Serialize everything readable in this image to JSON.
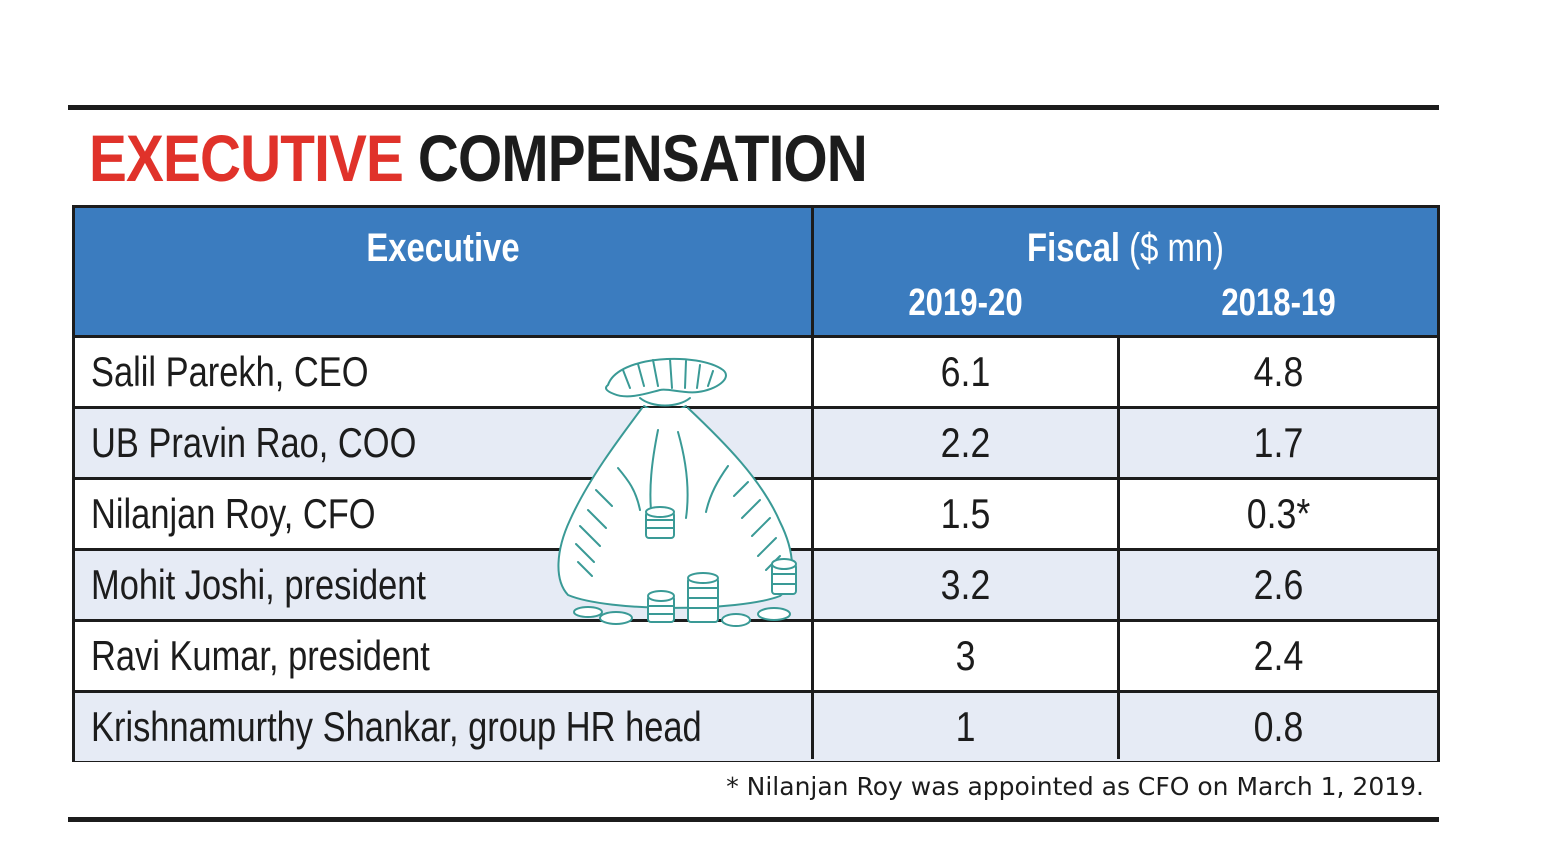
{
  "title": {
    "highlight": "EXECUTIVE",
    "rest": "COMPENSATION"
  },
  "header": {
    "executive": "Executive",
    "fiscal": "Fiscal",
    "unit": " ($ mn)",
    "years": [
      "2019-20",
      "2018-19"
    ]
  },
  "rows": [
    {
      "name": "Salil Parekh, CEO",
      "y2019_20": "6.1",
      "y2018_19": "4.8"
    },
    {
      "name": "UB Pravin Rao, COO",
      "y2019_20": "2.2",
      "y2018_19": "1.7"
    },
    {
      "name": "Nilanjan Roy, CFO",
      "y2019_20": "1.5",
      "y2018_19": "0.3*"
    },
    {
      "name": "Mohit Joshi, president",
      "y2019_20": "3.2",
      "y2018_19": "2.6"
    },
    {
      "name": "Ravi Kumar, president",
      "y2019_20": "3",
      "y2018_19": "2.4"
    },
    {
      "name": "Krishnamurthy Shankar, group HR head",
      "y2019_20": "1",
      "y2018_19": "0.8"
    }
  ],
  "footnote": "* Nilanjan Roy was appointed as CFO on March 1, 2019.",
  "illustration": "money-bag-icon",
  "colors": {
    "title_red": "#e0322a",
    "header_blue": "#3b7cbf",
    "alt_row": "#e6ebf5",
    "illustration": "#3a9a96"
  }
}
